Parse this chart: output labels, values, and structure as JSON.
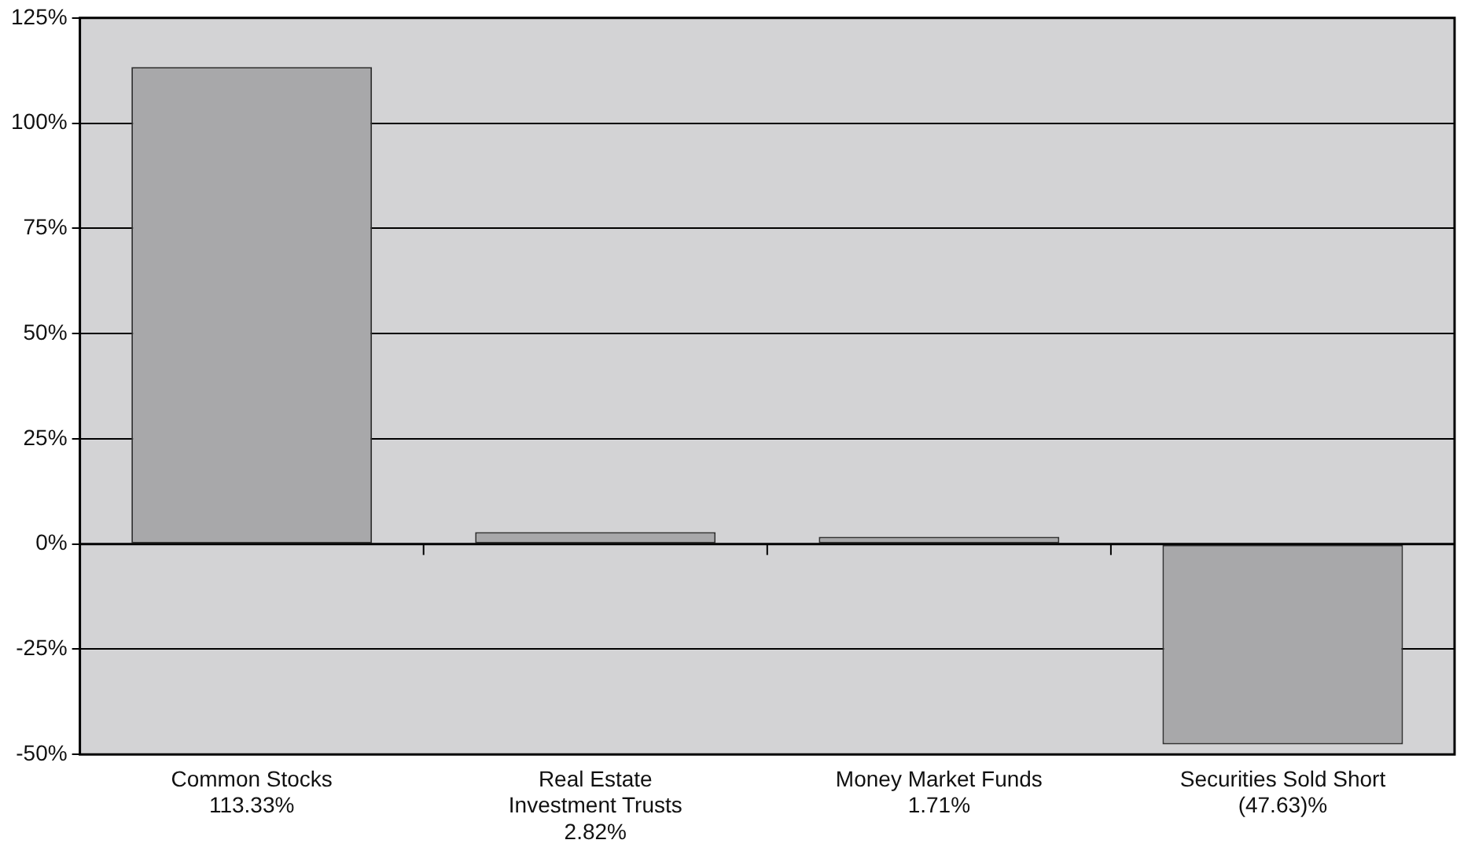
{
  "chart_data": {
    "type": "bar",
    "categories": [
      "Common Stocks\n113.33%",
      "Real Estate\nInvestment Trusts\n2.82%",
      "Money Market Funds\n1.71%",
      "Securities Sold Short\n(47.63)%"
    ],
    "values": [
      113.33,
      2.82,
      1.71,
      -47.63
    ],
    "color": "#a8a8aa",
    "ylim": [
      -50,
      125
    ],
    "yticks": [
      {
        "value": -50,
        "label": "-50%"
      },
      {
        "value": -25,
        "label": "-25%"
      },
      {
        "value": 0,
        "label": "0%"
      },
      {
        "value": 25,
        "label": "25%"
      },
      {
        "value": 50,
        "label": "50%"
      },
      {
        "value": 75,
        "label": "75%"
      },
      {
        "value": 100,
        "label": "100%"
      },
      {
        "value": 125,
        "label": "125%"
      }
    ],
    "grid": "y",
    "legend": false
  }
}
